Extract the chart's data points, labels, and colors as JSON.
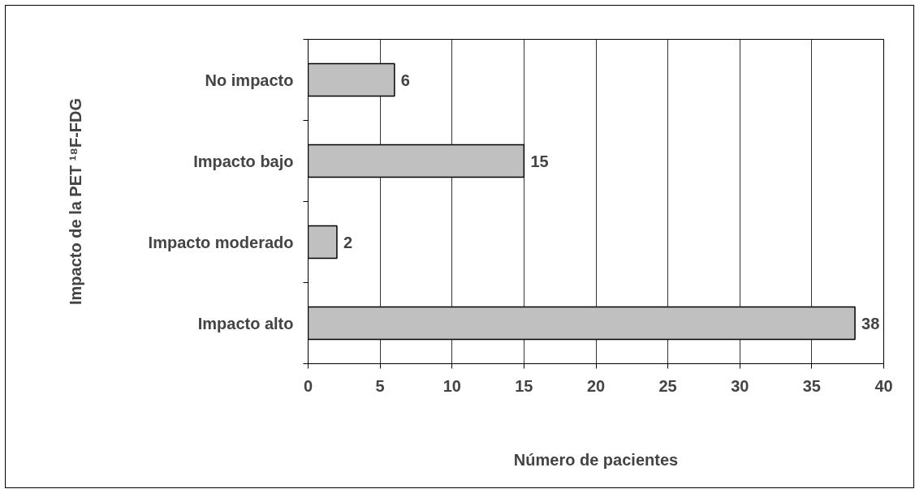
{
  "chart_data": {
    "type": "bar",
    "orientation": "horizontal",
    "categories": [
      "No impacto",
      "Impacto bajo",
      "Impacto moderado",
      "Impacto alto"
    ],
    "values": [
      6,
      15,
      2,
      38
    ],
    "color": "#c0c0c0",
    "xlim": [
      0,
      40
    ],
    "xticks": [
      0,
      5,
      10,
      15,
      20,
      25,
      30,
      35,
      40
    ],
    "grid": "x",
    "data_labels": true,
    "xlabel": "Número de pacientes",
    "ylabel": "Impacto de la PET ¹⁸F-FDG"
  }
}
